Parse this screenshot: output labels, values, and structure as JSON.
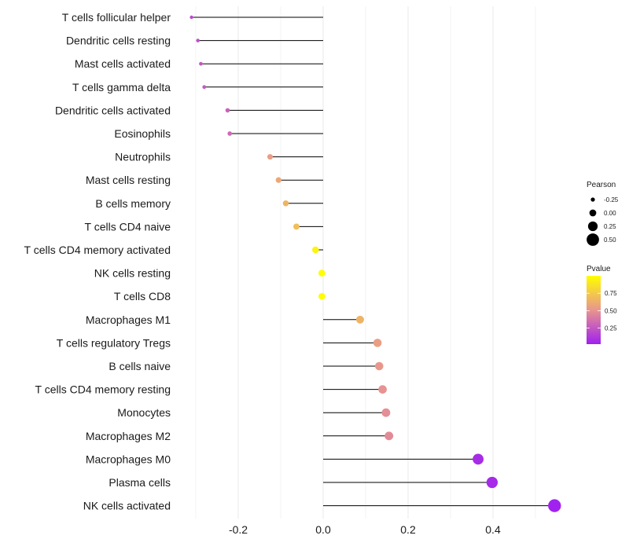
{
  "chart_data": {
    "type": "lollipop",
    "categories": [
      "T cells follicular helper",
      "Dendritic cells resting",
      "Mast cells activated",
      "T cells gamma delta",
      "Dendritic cells activated",
      "Eosinophils",
      "Neutrophils",
      "Mast cells resting",
      "B cells memory",
      "T cells CD4 naive",
      "T cells CD4 memory activated",
      "NK cells resting",
      "T cells CD8",
      "Macrophages M1",
      "T cells regulatory  Tregs ",
      "B cells naive",
      "T cells CD4 memory resting",
      "Monocytes",
      "Macrophages M2",
      "Macrophages M0",
      "Plasma cells",
      "NK cells activated"
    ],
    "pearson": [
      -0.31,
      -0.295,
      -0.288,
      -0.28,
      -0.225,
      -0.22,
      -0.125,
      -0.105,
      -0.088,
      -0.063,
      -0.018,
      -0.003,
      -0.003,
      0.087,
      0.128,
      0.132,
      0.14,
      0.148,
      0.155,
      0.365,
      0.398,
      0.545
    ],
    "pvalue": [
      0.2,
      0.22,
      0.25,
      0.27,
      0.3,
      0.33,
      0.55,
      0.6,
      0.65,
      0.7,
      0.95,
      0.99,
      0.99,
      0.65,
      0.55,
      0.52,
      0.5,
      0.48,
      0.47,
      0.07,
      0.06,
      0.03
    ],
    "x_ticks": [
      -0.2,
      0.0,
      0.2,
      0.4
    ],
    "x_tick_labels": [
      "-0.2",
      "0.0",
      "0.2",
      "0.4"
    ],
    "xlim": [
      -0.33,
      0.565
    ],
    "xlabel": "",
    "ylabel": "",
    "grid": true,
    "legend_size": {
      "title": "Pearson",
      "values": [
        -0.25,
        0.0,
        0.25,
        0.5
      ],
      "labels": [
        "-0.25",
        "0.00",
        "0.25",
        "0.50"
      ]
    },
    "legend_color": {
      "title": "Pvalue",
      "ticks": [
        0.25,
        0.5,
        0.75
      ],
      "labels": [
        "0.25",
        "0.50",
        "0.75"
      ],
      "range": [
        0.02,
        1.0
      ],
      "low_color": "#a020f0",
      "mid_color": "#e8958f",
      "high_color": "#ffff00"
    },
    "line_color": "#000000",
    "grid_color": "#ebebeb"
  }
}
